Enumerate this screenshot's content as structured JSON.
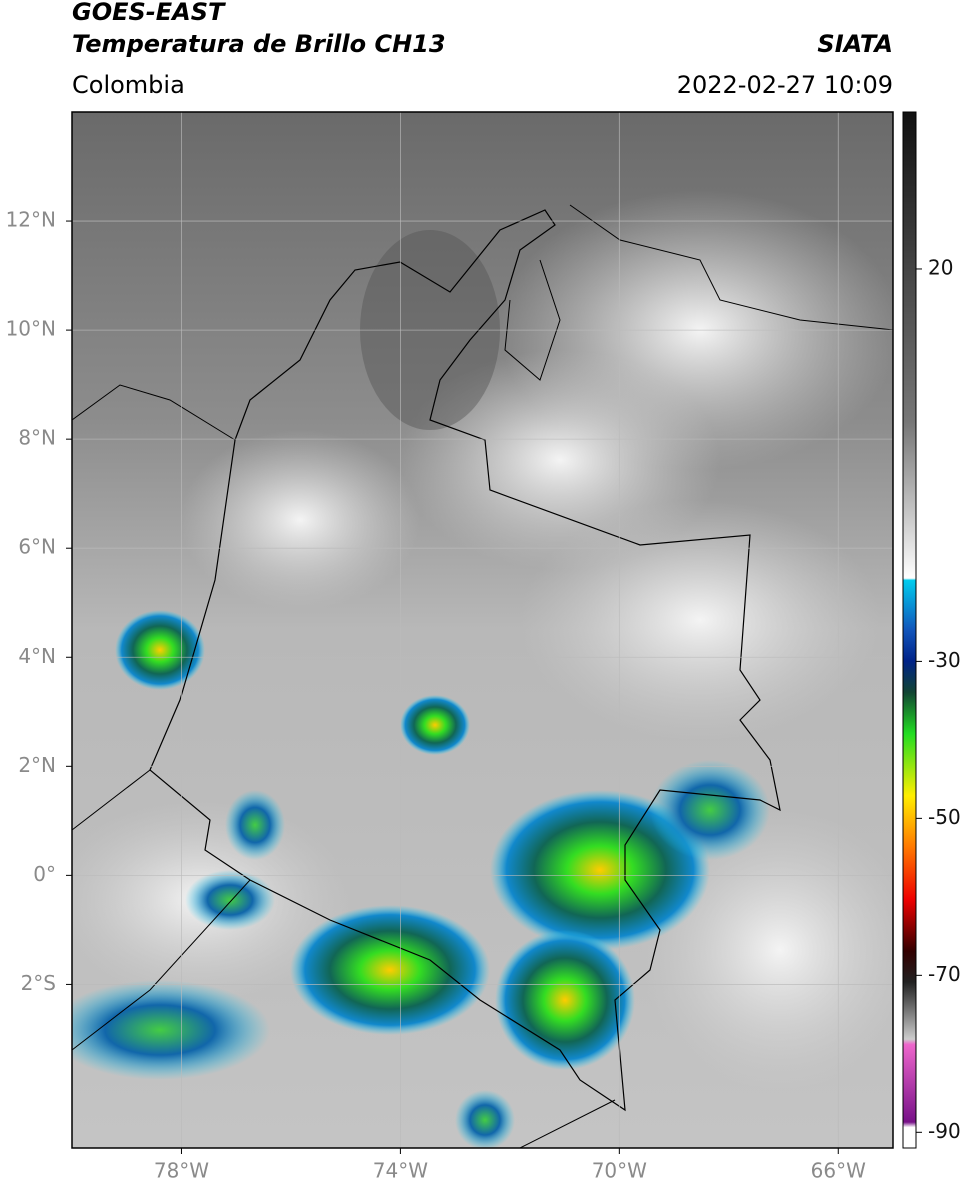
{
  "header": {
    "title": "GOES-EAST",
    "subtitle": "Temperatura de Brillo CH13",
    "region": "Colombia",
    "source": "SIATA",
    "datetime": "2022-02-27 10:09"
  },
  "map": {
    "xlim": [
      -80,
      -65
    ],
    "ylim": [
      -5,
      14
    ],
    "xticks": [
      {
        "value": -78,
        "label": "78°W"
      },
      {
        "value": -74,
        "label": "74°W"
      },
      {
        "value": -70,
        "label": "70°W"
      },
      {
        "value": -66,
        "label": "66°W"
      }
    ],
    "yticks": [
      {
        "value": 12,
        "label": "12°N"
      },
      {
        "value": 10,
        "label": "10°N"
      },
      {
        "value": 8,
        "label": "8°N"
      },
      {
        "value": 6,
        "label": "6°N"
      },
      {
        "value": 4,
        "label": "4°N"
      },
      {
        "value": 2,
        "label": "2°N"
      },
      {
        "value": 0,
        "label": "0°"
      },
      {
        "value": -2,
        "label": "2°S"
      }
    ],
    "grid": true
  },
  "colorbar": {
    "lim": [
      -92,
      40
    ],
    "ticks": [
      20,
      -30,
      -50,
      -70,
      -90
    ]
  }
}
